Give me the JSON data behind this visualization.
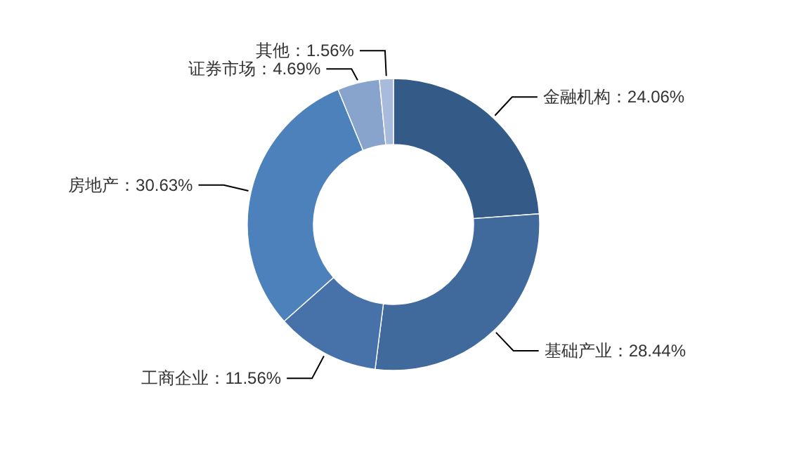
{
  "chart_data": {
    "type": "donut",
    "categories": [
      "金融机构",
      "基础产业",
      "工商企业",
      "房地产",
      "证券市场",
      "其他"
    ],
    "values": [
      24.06,
      28.44,
      11.56,
      30.63,
      4.69,
      1.56
    ],
    "colors": [
      "#345b87",
      "#3f6a9b",
      "#4672a9",
      "#4d81bc",
      "#88a3cc",
      "#a8bbdc"
    ],
    "value_labels": [
      "：24.06%",
      "：28.44%",
      "：11.56%",
      "：30.63%",
      "：4.69%",
      "：1.56%"
    ]
  }
}
